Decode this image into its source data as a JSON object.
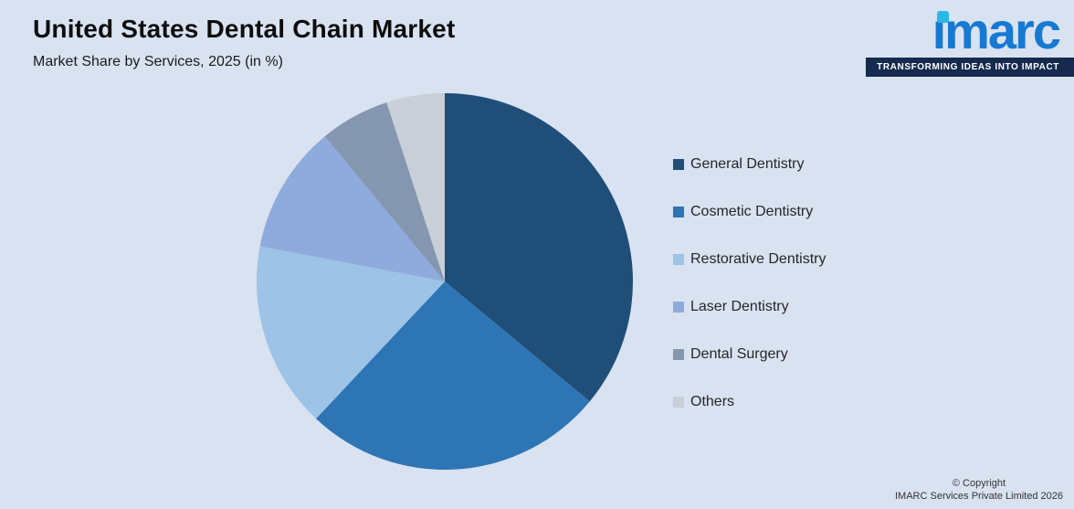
{
  "page": {
    "title": "United States Dental Chain Market",
    "subtitle": "Market Share by Services, 2025 (in %)",
    "background_color": "#d9e2f1"
  },
  "logo": {
    "brand": "imarc",
    "brand_display": "ımarc",
    "tagline": "TRANSFORMING IDEAS INTO IMPACT",
    "brand_color": "#1779d2",
    "dot_color": "#2ab7ea",
    "tagline_bg_color": "#152a4e"
  },
  "footer": {
    "copyright_line1": "© Copyright",
    "copyright_line2": "IMARC Services Private Limited 2026"
  },
  "chart_data": {
    "type": "pie",
    "title": "United States Dental Chain Market",
    "subtitle": "Market Share by Services, 2025 (in %)",
    "labels": [
      "General Dentistry",
      "Cosmetic Dentistry",
      "Restorative Dentistry",
      "Laser Dentistry",
      "Dental Surgery",
      "Others"
    ],
    "values": [
      36,
      26,
      16,
      11,
      6,
      5
    ],
    "colors": [
      "#1f4e79",
      "#2e75b6",
      "#9dc3e6",
      "#8faadc",
      "#8496b0",
      "#c9cfd6"
    ],
    "start_angle_deg": 0,
    "direction": "clockwise",
    "legend_position": "right",
    "data_labels_shown": false
  }
}
